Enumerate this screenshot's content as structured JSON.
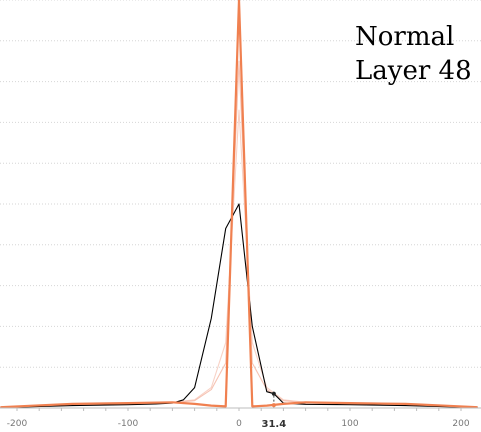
{
  "chart_data": {
    "type": "line",
    "annotation": [
      "Normal",
      "Layer 48"
    ],
    "xlim": [
      -215,
      215
    ],
    "ylim": [
      0,
      1.0
    ],
    "x_ticks": [
      -200,
      -100,
      0,
      100,
      200
    ],
    "grid": "horizontal dotted",
    "marker": {
      "x": 31.4,
      "label": "31.4"
    },
    "colors": {
      "highlight": "#f08050",
      "faded": "#f4b4a0",
      "dark": "#000000",
      "grid": "#d6d6d6",
      "axis": "#bdbdbd"
    },
    "series": [
      {
        "color_key": "faded",
        "opacity": 0.6,
        "points": [
          [
            -215,
            0.002
          ],
          [
            -150,
            0.008
          ],
          [
            -100,
            0.01
          ],
          [
            -60,
            0.014
          ],
          [
            -40,
            0.02
          ],
          [
            -25,
            0.05
          ],
          [
            -12,
            0.16
          ],
          [
            0,
            0.73
          ],
          [
            12,
            0.16
          ],
          [
            25,
            0.05
          ],
          [
            40,
            0.02
          ],
          [
            60,
            0.014
          ],
          [
            100,
            0.01
          ],
          [
            150,
            0.008
          ],
          [
            215,
            0.002
          ]
        ]
      },
      {
        "color_key": "faded",
        "opacity": 0.8,
        "points": [
          [
            -215,
            0.002
          ],
          [
            -150,
            0.007
          ],
          [
            -100,
            0.009
          ],
          [
            -60,
            0.013
          ],
          [
            -40,
            0.018
          ],
          [
            -25,
            0.045
          ],
          [
            -12,
            0.11
          ],
          [
            0,
            0.85
          ],
          [
            12,
            0.11
          ],
          [
            25,
            0.045
          ],
          [
            40,
            0.018
          ],
          [
            60,
            0.013
          ],
          [
            100,
            0.009
          ],
          [
            150,
            0.007
          ],
          [
            215,
            0.002
          ]
        ]
      },
      {
        "color_key": "dark",
        "opacity": 1,
        "points": [
          [
            -215,
            0.001
          ],
          [
            -150,
            0.006
          ],
          [
            -100,
            0.008
          ],
          [
            -75,
            0.01
          ],
          [
            -60,
            0.012
          ],
          [
            -50,
            0.02
          ],
          [
            -40,
            0.05
          ],
          [
            -25,
            0.22
          ],
          [
            -12,
            0.44
          ],
          [
            0,
            0.5
          ],
          [
            12,
            0.2
          ],
          [
            25,
            0.04
          ],
          [
            31.4,
            0.035
          ],
          [
            40,
            0.012
          ],
          [
            60,
            0.009
          ],
          [
            100,
            0.008
          ],
          [
            150,
            0.006
          ],
          [
            215,
            0.001
          ]
        ]
      },
      {
        "color_key": "highlight",
        "opacity": 1,
        "points": [
          [
            -215,
            0.002
          ],
          [
            -150,
            0.01
          ],
          [
            -100,
            0.012
          ],
          [
            -60,
            0.014
          ],
          [
            -40,
            0.01
          ],
          [
            -25,
            0.006
          ],
          [
            -12,
            0.004
          ],
          [
            -6,
            0.5
          ],
          [
            0,
            1.0
          ],
          [
            6,
            0.5
          ],
          [
            12,
            0.004
          ],
          [
            25,
            0.006
          ],
          [
            40,
            0.01
          ],
          [
            60,
            0.014
          ],
          [
            100,
            0.012
          ],
          [
            150,
            0.01
          ],
          [
            215,
            0.002
          ]
        ]
      }
    ]
  }
}
